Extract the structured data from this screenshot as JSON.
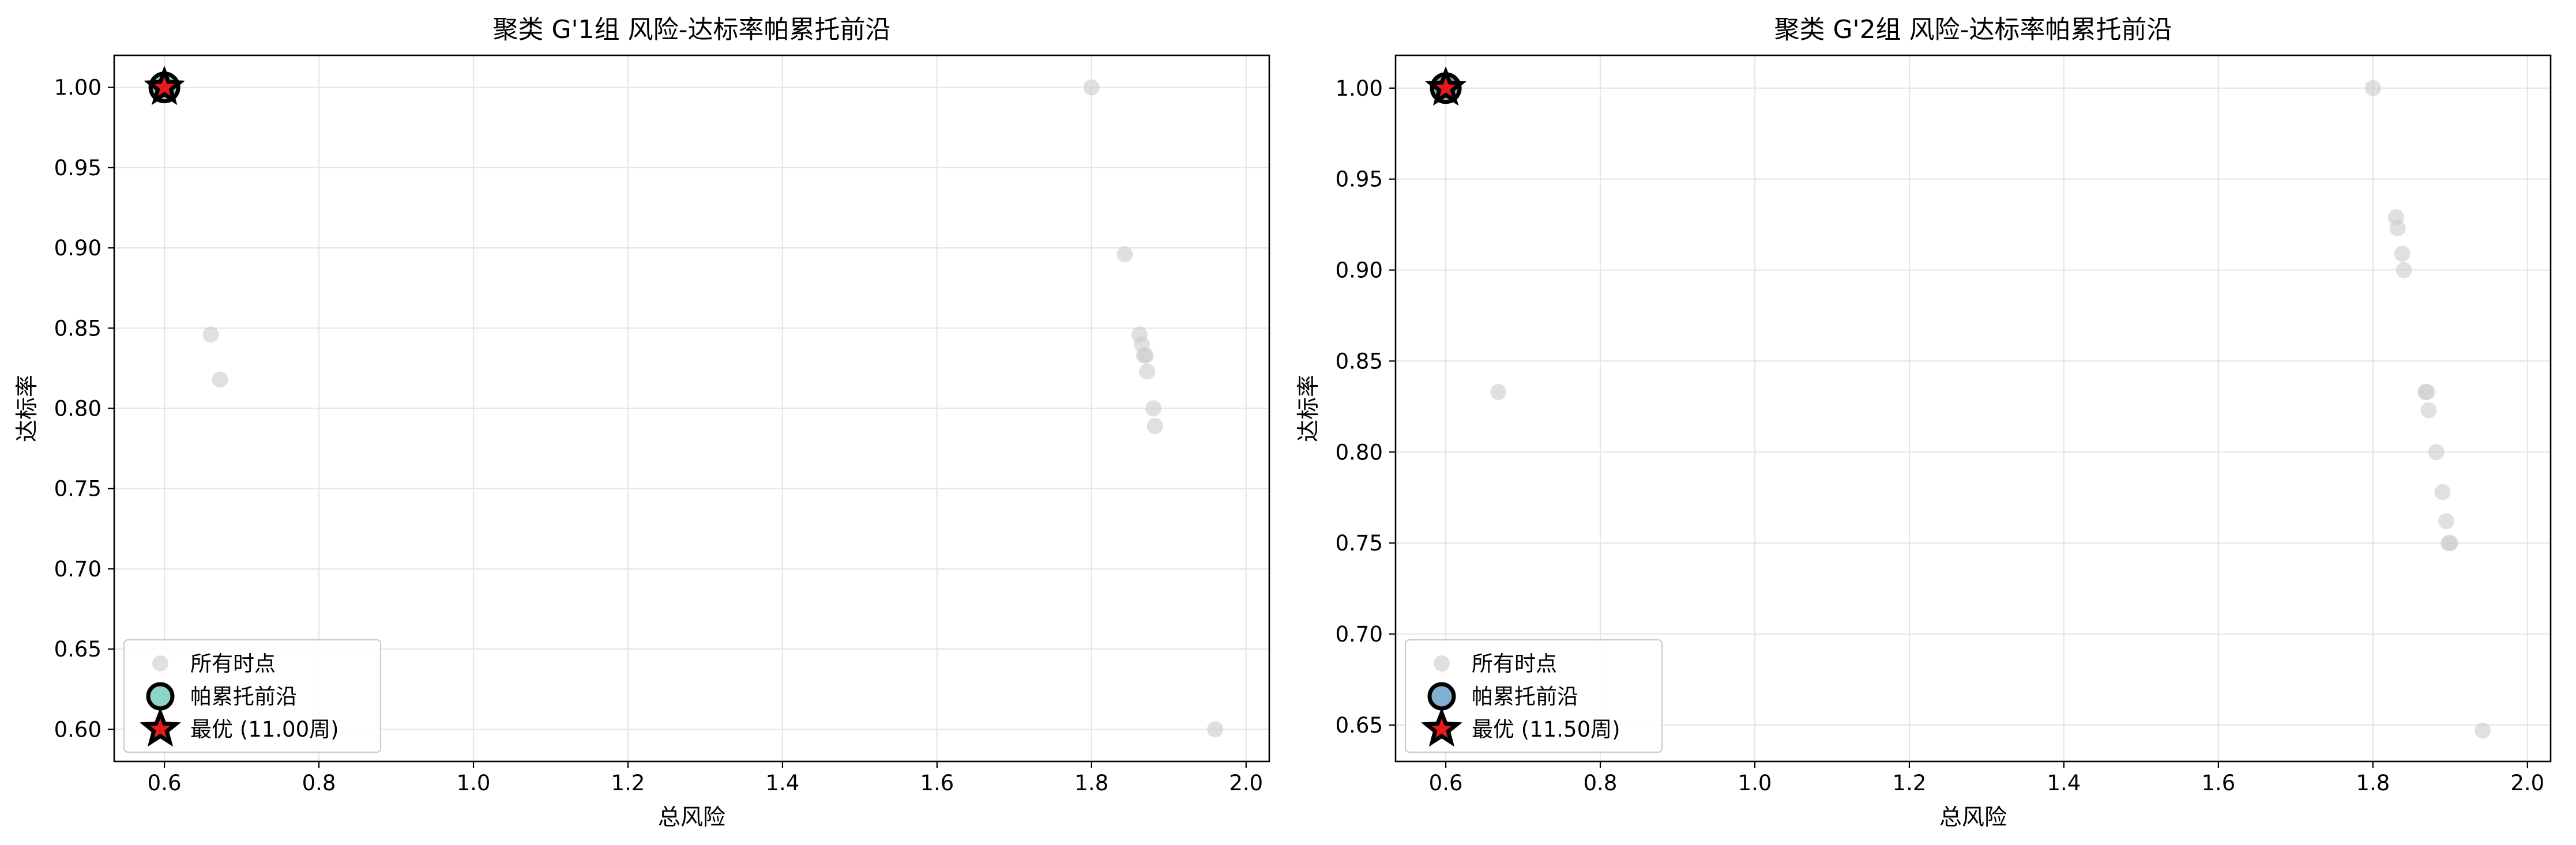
{
  "chart_data": [
    {
      "type": "scatter",
      "title": "聚类 G'1组 风险-达标率帕累托前沿",
      "xlabel": "总风险",
      "ylabel": "达标率",
      "xlim": [
        0.535,
        2.03
      ],
      "ylim": [
        0.58,
        1.02
      ],
      "xticks": [
        "0.6",
        "0.8",
        "1.0",
        "1.2",
        "1.4",
        "1.6",
        "1.8",
        "2.0"
      ],
      "xtick_values": [
        0.6,
        0.8,
        1.0,
        1.2,
        1.4,
        1.6,
        1.8,
        2.0
      ],
      "yticks": [
        "0.60",
        "0.65",
        "0.70",
        "0.75",
        "0.80",
        "0.85",
        "0.90",
        "0.95",
        "1.00"
      ],
      "ytick_values": [
        0.6,
        0.65,
        0.7,
        0.75,
        0.8,
        0.85,
        0.9,
        0.95,
        1.0
      ],
      "grid": true,
      "legend_position": "lower-left",
      "front_color": "#8dd3c7",
      "series": [
        {
          "name": "所有时点",
          "points": [
            [
              0.66,
              0.846
            ],
            [
              0.672,
              0.818
            ],
            [
              1.8,
              1.0
            ],
            [
              1.843,
              0.896
            ],
            [
              1.862,
              0.846
            ],
            [
              1.865,
              0.84
            ],
            [
              1.868,
              0.833
            ],
            [
              1.87,
              0.833
            ],
            [
              1.872,
              0.823
            ],
            [
              1.88,
              0.8
            ],
            [
              1.882,
              0.789
            ],
            [
              1.96,
              0.6
            ]
          ]
        },
        {
          "name": "帕累托前沿",
          "points": [
            [
              0.6,
              1.0
            ]
          ]
        },
        {
          "name": "最优 (11.00周)",
          "points": [
            [
              0.6,
              1.0
            ]
          ]
        }
      ]
    },
    {
      "type": "scatter",
      "title": "聚类 G'2组 风险-达标率帕累托前沿",
      "xlabel": "总风险",
      "ylabel": "达标率",
      "xlim": [
        0.535,
        2.03
      ],
      "ylim": [
        0.63,
        1.018
      ],
      "xticks": [
        "0.6",
        "0.8",
        "1.0",
        "1.2",
        "1.4",
        "1.6",
        "1.8",
        "2.0"
      ],
      "xtick_values": [
        0.6,
        0.8,
        1.0,
        1.2,
        1.4,
        1.6,
        1.8,
        2.0
      ],
      "yticks": [
        "0.65",
        "0.70",
        "0.75",
        "0.80",
        "0.85",
        "0.90",
        "0.95",
        "1.00"
      ],
      "ytick_values": [
        0.65,
        0.7,
        0.75,
        0.8,
        0.85,
        0.9,
        0.95,
        1.0
      ],
      "grid": true,
      "legend_position": "lower-left",
      "front_color": "#80b1d3",
      "series": [
        {
          "name": "所有时点",
          "points": [
            [
              0.668,
              0.833
            ],
            [
              1.8,
              1.0
            ],
            [
              1.83,
              0.929
            ],
            [
              1.832,
              0.923
            ],
            [
              1.838,
              0.909
            ],
            [
              1.84,
              0.9
            ],
            [
              1.868,
              0.833
            ],
            [
              1.87,
              0.833
            ],
            [
              1.872,
              0.823
            ],
            [
              1.882,
              0.8
            ],
            [
              1.89,
              0.778
            ],
            [
              1.895,
              0.762
            ],
            [
              1.898,
              0.75
            ],
            [
              1.9,
              0.75
            ],
            [
              1.942,
              0.647
            ]
          ]
        },
        {
          "name": "帕累托前沿",
          "points": [
            [
              0.6,
              1.0
            ]
          ]
        },
        {
          "name": "最优 (11.50周)",
          "points": [
            [
              0.6,
              1.0
            ]
          ]
        }
      ]
    }
  ],
  "colors": {
    "all_points": "#cccccc",
    "star_fill": "#e41a1c",
    "marker_edge": "#000000",
    "grid": "#e6e6e6",
    "legend_border": "#cccccc"
  }
}
